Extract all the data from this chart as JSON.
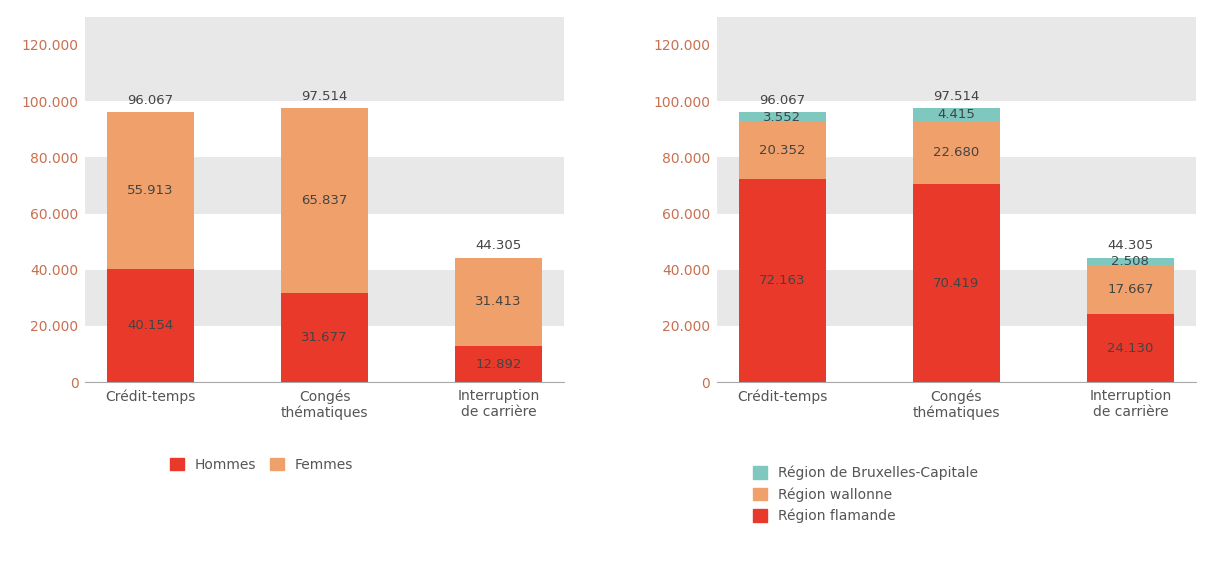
{
  "categories": [
    "Crédit-temps",
    "Congés\nthématiques",
    "Interruption\nde carrière"
  ],
  "left_chart": {
    "hommes": [
      40154,
      31677,
      12892
    ],
    "femmes": [
      55913,
      65837,
      31413
    ],
    "totals": [
      96067,
      97514,
      44305
    ],
    "colors": {
      "hommes": "#e8392a",
      "femmes": "#f0a06a"
    }
  },
  "right_chart": {
    "flamande": [
      72163,
      70419,
      24130
    ],
    "wallonne": [
      20352,
      22680,
      17667
    ],
    "bruxelles": [
      3552,
      4415,
      2508
    ],
    "totals": [
      96067,
      97514,
      44305
    ],
    "colors": {
      "flamande": "#e8392a",
      "wallonne": "#f0a06a",
      "bruxelles": "#7ec8c0"
    }
  },
  "ylim": [
    0,
    130000
  ],
  "yticks": [
    0,
    20000,
    40000,
    60000,
    80000,
    100000,
    120000
  ],
  "ytick_labels": [
    "0",
    "20.000",
    "40.000",
    "60.000",
    "80.000",
    "100.000",
    "120.000"
  ],
  "band_color": "#e8e8e8",
  "bg_color": "#ffffff",
  "bar_width": 0.5,
  "label_fontsize": 9.5,
  "tick_fontsize": 10,
  "legend_fontsize": 10,
  "tick_color": "#c87050",
  "text_color": "#555555",
  "label_color": "#444444"
}
